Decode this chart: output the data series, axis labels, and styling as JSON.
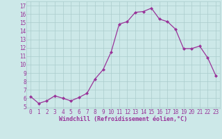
{
  "x": [
    0,
    1,
    2,
    3,
    4,
    5,
    6,
    7,
    8,
    9,
    10,
    11,
    12,
    13,
    14,
    15,
    16,
    17,
    18,
    19,
    20,
    21,
    22,
    23
  ],
  "y": [
    6.2,
    5.4,
    5.7,
    6.3,
    6.0,
    5.7,
    6.1,
    6.6,
    8.3,
    9.4,
    11.5,
    14.8,
    15.1,
    16.2,
    16.3,
    16.7,
    15.4,
    15.1,
    14.2,
    11.9,
    11.9,
    12.2,
    10.8,
    8.7
  ],
  "line_color": "#993399",
  "marker": "D",
  "marker_size": 2.0,
  "bg_color": "#cce8e8",
  "grid_color": "#aacccc",
  "xlabel": "Windchill (Refroidissement éolien,°C)",
  "xlabel_color": "#993399",
  "tick_color": "#993399",
  "yticks": [
    5,
    6,
    7,
    8,
    9,
    10,
    11,
    12,
    13,
    14,
    15,
    16,
    17
  ],
  "xticks": [
    0,
    1,
    2,
    3,
    4,
    5,
    6,
    7,
    8,
    9,
    10,
    11,
    12,
    13,
    14,
    15,
    16,
    17,
    18,
    19,
    20,
    21,
    22,
    23
  ],
  "ylim": [
    4.8,
    17.5
  ],
  "xlim": [
    -0.5,
    23.5
  ],
  "tick_fontsize": 5.5,
  "xlabel_fontsize": 6.0
}
